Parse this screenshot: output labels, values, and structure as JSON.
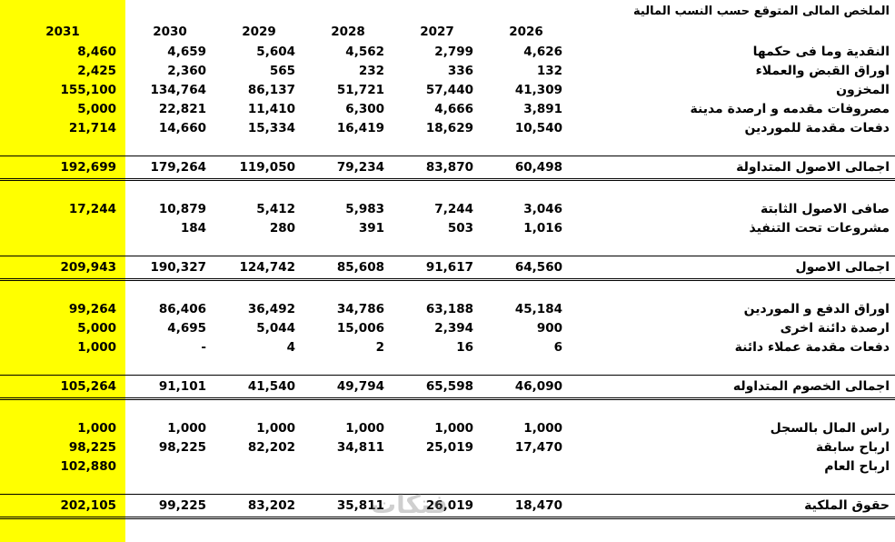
{
  "title": "الملخص المالى المتوقع حسب النسب المالية",
  "watermark": "فتكات",
  "colors": {
    "highlight_column": "#ffff00",
    "text": "#000000",
    "background": "#ffffff"
  },
  "columns": [
    "2031",
    "2030",
    "2029",
    "2028",
    "2027",
    "2026"
  ],
  "rows": [
    {
      "type": "data",
      "label": "النقدية وما فى حكمها",
      "values": [
        "8,460",
        "4,659",
        "5,604",
        "4,562",
        "2,799",
        "4,626"
      ]
    },
    {
      "type": "data",
      "label": "اوراق القبض والعملاء",
      "values": [
        "2,425",
        "2,360",
        "565",
        "232",
        "336",
        "132"
      ]
    },
    {
      "type": "data",
      "label": "المخزون",
      "values": [
        "155,100",
        "134,764",
        "86,137",
        "51,721",
        "57,440",
        "41,309"
      ]
    },
    {
      "type": "data",
      "label": "مصروفات مقدمه و ارصدة مدينة",
      "values": [
        "5,000",
        "22,821",
        "11,410",
        "6,300",
        "4,666",
        "3,891"
      ]
    },
    {
      "type": "data",
      "label": "دفعات مقدمة للموردين",
      "values": [
        "21,714",
        "14,660",
        "15,334",
        "16,419",
        "18,629",
        "10,540"
      ]
    },
    {
      "type": "blank",
      "label": "",
      "values": [
        "",
        "",
        "",
        "",
        "",
        ""
      ]
    },
    {
      "type": "total",
      "label": "اجمالى الاصول المتداولة",
      "values": [
        "192,699",
        "179,264",
        "119,050",
        "79,234",
        "83,870",
        "60,498"
      ]
    },
    {
      "type": "blank",
      "label": "",
      "values": [
        "",
        "",
        "",
        "",
        "",
        ""
      ]
    },
    {
      "type": "data",
      "label": "صافى الاصول الثابتة",
      "values": [
        "17,244",
        "10,879",
        "5,412",
        "5,983",
        "7,244",
        "3,046"
      ]
    },
    {
      "type": "data",
      "label": "مشروعات تحت التنفيذ",
      "values": [
        "",
        "184",
        "280",
        "391",
        "503",
        "1,016"
      ]
    },
    {
      "type": "blank",
      "label": "",
      "values": [
        "",
        "",
        "",
        "",
        "",
        ""
      ]
    },
    {
      "type": "total",
      "label": "اجمالى الاصول",
      "values": [
        "209,943",
        "190,327",
        "124,742",
        "85,608",
        "91,617",
        "64,560"
      ]
    },
    {
      "type": "blank",
      "label": "",
      "values": [
        "",
        "",
        "",
        "",
        "",
        ""
      ]
    },
    {
      "type": "data",
      "label": "اوراق الدفع و الموردين",
      "values": [
        "99,264",
        "86,406",
        "36,492",
        "34,786",
        "63,188",
        "45,184"
      ]
    },
    {
      "type": "data",
      "label": "ارصدة دائنة اخرى",
      "values": [
        "5,000",
        "4,695",
        "5,044",
        "15,006",
        "2,394",
        "900"
      ]
    },
    {
      "type": "data",
      "label": "دفعات مقدمة  عملاء دائنة",
      "values": [
        "1,000",
        "-",
        "4",
        "2",
        "16",
        "6"
      ]
    },
    {
      "type": "blank",
      "label": "",
      "values": [
        "",
        "",
        "",
        "",
        "",
        ""
      ]
    },
    {
      "type": "total",
      "label": "اجمالى الخصوم المتداوله",
      "values": [
        "105,264",
        "91,101",
        "41,540",
        "49,794",
        "65,598",
        "46,090"
      ]
    },
    {
      "type": "blank",
      "label": "",
      "values": [
        "",
        "",
        "",
        "",
        "",
        ""
      ]
    },
    {
      "type": "data",
      "label": "راس المال بالسجل",
      "values": [
        "1,000",
        "1,000",
        "1,000",
        "1,000",
        "1,000",
        "1,000"
      ]
    },
    {
      "type": "data",
      "label": "ارباح سابقة",
      "values": [
        "98,225",
        "98,225",
        "82,202",
        "34,811",
        "25,019",
        "17,470"
      ]
    },
    {
      "type": "data",
      "label": "ارباح العام",
      "values": [
        "102,880",
        "",
        "",
        "",
        "",
        ""
      ]
    },
    {
      "type": "blank",
      "label": "",
      "values": [
        "",
        "",
        "",
        "",
        "",
        ""
      ]
    },
    {
      "type": "total",
      "label": "حقوق الملكية",
      "values": [
        "202,105",
        "99,225",
        "83,202",
        "35,811",
        "26,019",
        "18,470"
      ]
    }
  ]
}
